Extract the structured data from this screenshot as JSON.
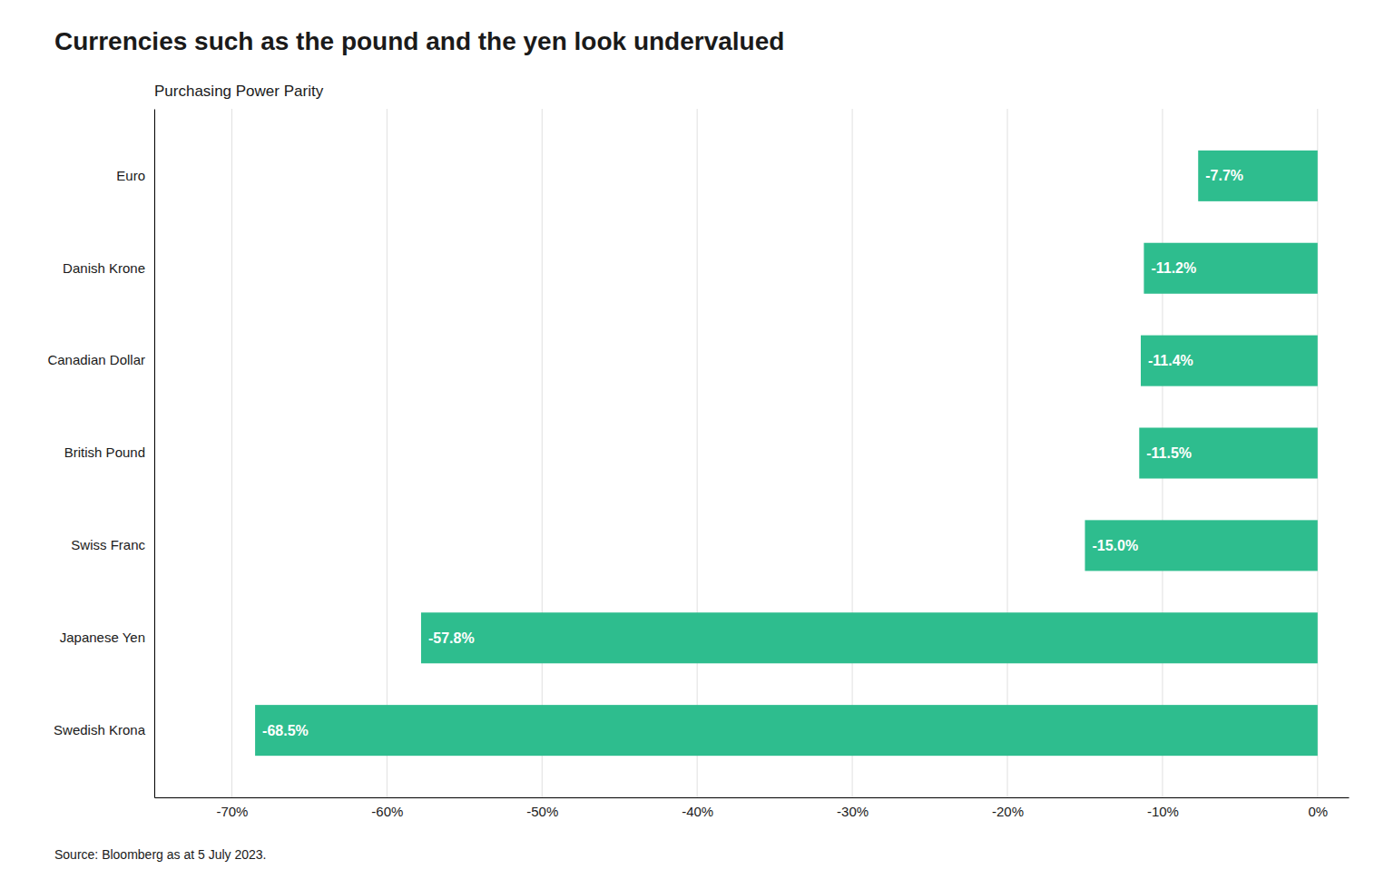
{
  "chart_data": {
    "type": "bar",
    "orientation": "horizontal",
    "title": "Currencies such as the pound and the yen look undervalued",
    "subtitle": "Purchasing Power Parity",
    "source": "Source: Bloomberg as at 5 July 2023.",
    "categories": [
      "Euro",
      "Danish Krone",
      "Canadian Dollar",
      "British Pound",
      "Swiss Franc",
      "Japanese Yen",
      "Swedish Krona"
    ],
    "values": [
      -7.7,
      -11.2,
      -11.4,
      -11.5,
      -15.0,
      -57.8,
      -68.5
    ],
    "value_labels": [
      "-7.7%",
      "-11.2%",
      "-11.4%",
      "-11.5%",
      "-15.0%",
      "-57.8%",
      "-68.5%"
    ],
    "data_labels": true,
    "color": "#2EBD8E",
    "xlim": [
      -75,
      2
    ],
    "xticks": [
      {
        "value": -70,
        "label": "-70%"
      },
      {
        "value": -60,
        "label": "-60%"
      },
      {
        "value": -50,
        "label": "-50%"
      },
      {
        "value": -40,
        "label": "-40%"
      },
      {
        "value": -30,
        "label": "-30%"
      },
      {
        "value": -20,
        "label": "-20%"
      },
      {
        "value": -10,
        "label": "-10%"
      },
      {
        "value": 0,
        "label": "0%"
      }
    ],
    "grid": true
  }
}
